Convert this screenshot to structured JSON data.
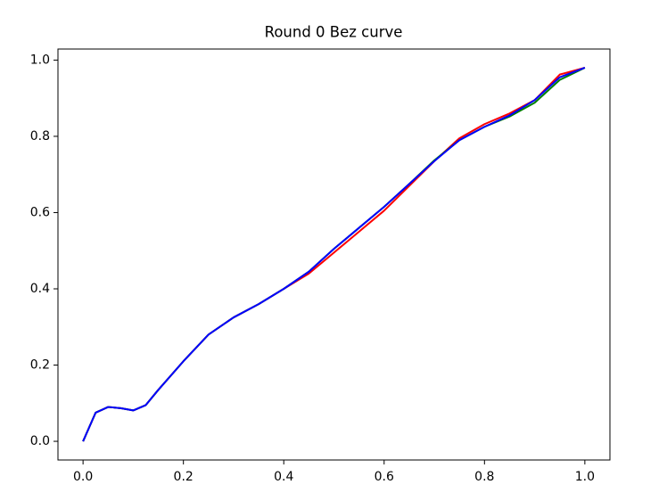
{
  "chart_data": {
    "type": "line",
    "title": "Round 0 Bez curve",
    "x": [
      0,
      0.025,
      0.05,
      0.075,
      0.1,
      0.125,
      0.15,
      0.2,
      0.25,
      0.3,
      0.35,
      0.4,
      0.45,
      0.5,
      0.55,
      0.6,
      0.65,
      0.7,
      0.75,
      0.8,
      0.85,
      0.9,
      0.95,
      1.0
    ],
    "series": [
      {
        "color": "#ff0000",
        "values": [
          0,
          0.075,
          0.09,
          0.087,
          0.081,
          0.095,
          0.135,
          0.21,
          0.28,
          0.325,
          0.36,
          0.4,
          0.44,
          0.495,
          0.55,
          0.605,
          0.67,
          0.735,
          0.795,
          0.832,
          0.86,
          0.895,
          0.962,
          0.98
        ]
      },
      {
        "color": "#008000",
        "values": [
          0,
          0.075,
          0.09,
          0.087,
          0.081,
          0.095,
          0.135,
          0.21,
          0.28,
          0.325,
          0.36,
          0.4,
          0.445,
          0.505,
          0.56,
          0.615,
          0.675,
          0.737,
          0.79,
          0.825,
          0.852,
          0.888,
          0.948,
          0.98
        ]
      },
      {
        "color": "#0000ff",
        "values": [
          0,
          0.075,
          0.09,
          0.087,
          0.081,
          0.095,
          0.135,
          0.21,
          0.28,
          0.325,
          0.36,
          0.4,
          0.445,
          0.505,
          0.56,
          0.615,
          0.675,
          0.735,
          0.79,
          0.825,
          0.855,
          0.895,
          0.955,
          0.98
        ]
      }
    ],
    "xlim": [
      -0.05,
      1.05
    ],
    "ylim": [
      -0.049,
      1.029
    ],
    "xticks": [
      {
        "value": 0,
        "label": "0.0"
      },
      0.2,
      0.4,
      0.6,
      0.8,
      {
        "value": 1,
        "label": "1.0"
      }
    ],
    "yticks": [
      {
        "value": 0,
        "label": "0.0"
      },
      0.2,
      0.4,
      0.6,
      0.8,
      {
        "value": 1,
        "label": "1.0"
      }
    ],
    "grid": false
  }
}
